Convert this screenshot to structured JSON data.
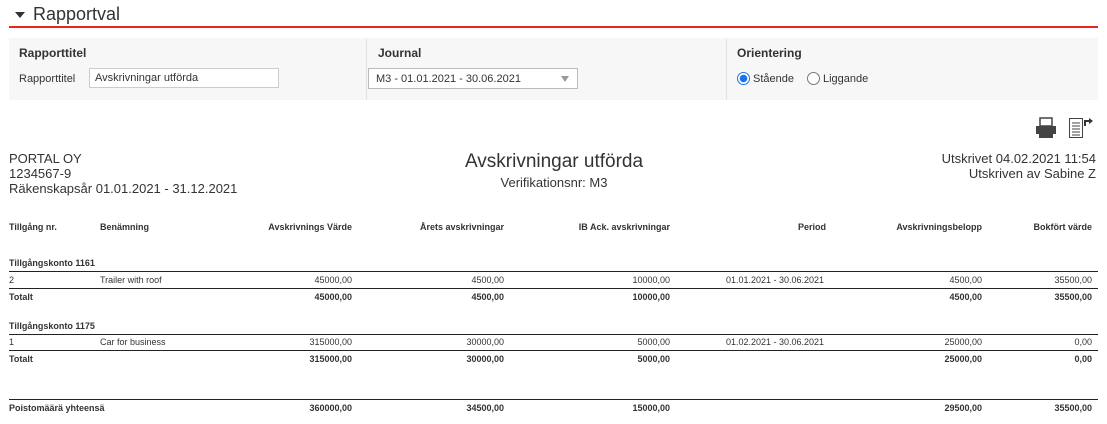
{
  "section": {
    "title": "Rapportval"
  },
  "filters": {
    "title_group": "Rapporttitel",
    "title_label": "Rapporttitel",
    "title_value": "Avskrivningar utförda",
    "journal_group": "Journal",
    "journal_value": "M3 - 01.01.2021 - 30.06.2021",
    "orientation_group": "Orientering",
    "options": [
      {
        "label": "Stående",
        "selected": true
      },
      {
        "label": "Liggande",
        "selected": false
      }
    ]
  },
  "report": {
    "company": "PORTAL OY",
    "org_nr": "1234567-9",
    "fiscal_year": "Räkenskapsår 01.01.2021 - 31.12.2021",
    "title": "Avskrivningar utförda",
    "subtitle": "Verifikationsnr: M3",
    "printed": "Utskrivet 04.02.2021 11:54",
    "printed_by": "Utskriven av Sabine Z",
    "columns": [
      "Tillgång nr.",
      "Benämning",
      "Avskrivnings Värde",
      "Årets avskrivningar",
      "IB Ack. avskrivningar",
      "Period",
      "Avskrivningsbelopp",
      "Bokfört värde"
    ],
    "groups": [
      {
        "label": "Tillgångskonto 1161",
        "rows": [
          [
            "2",
            "Trailer with roof",
            "45000,00",
            "4500,00",
            "10000,00",
            "01.01.2021 - 30.06.2021",
            "4500,00",
            "35500,00"
          ]
        ],
        "total": [
          "Totalt",
          "",
          "45000,00",
          "4500,00",
          "10000,00",
          "",
          "4500,00",
          "35500,00"
        ]
      },
      {
        "label": "Tillgångskonto 1175",
        "rows": [
          [
            "1",
            "Car for business",
            "315000,00",
            "30000,00",
            "5000,00",
            "01.02.2021 - 30.06.2021",
            "25000,00",
            "0,00"
          ]
        ],
        "total": [
          "Totalt",
          "",
          "315000,00",
          "30000,00",
          "5000,00",
          "",
          "25000,00",
          "0,00"
        ]
      }
    ],
    "grand_total": [
      "Poistomäärä yhteensä",
      "",
      "360000,00",
      "34500,00",
      "15000,00",
      "",
      "29500,00",
      "35500,00"
    ]
  },
  "icons": {
    "print": "printer-icon",
    "export": "export-document-icon"
  }
}
